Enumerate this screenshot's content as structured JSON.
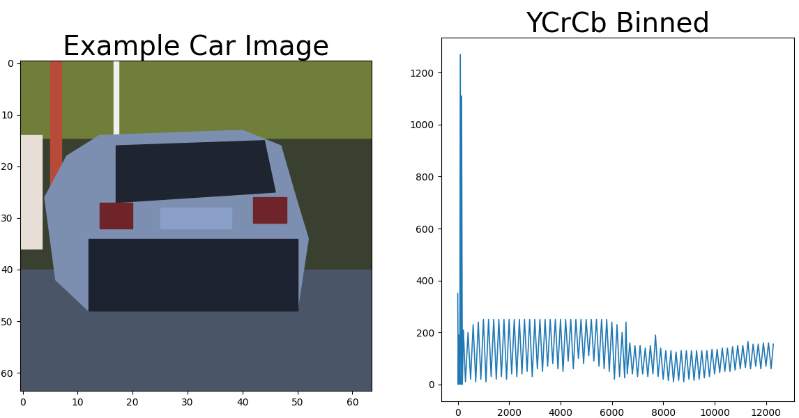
{
  "chart_data": [
    {
      "type": "image",
      "title": "Example Car Image",
      "xlim": [
        -0.5,
        63.5
      ],
      "ylim": [
        63.5,
        -0.5
      ],
      "xticks": [
        0,
        10,
        20,
        30,
        40,
        50,
        60
      ],
      "yticks": [
        0,
        10,
        20,
        30,
        40,
        50,
        60
      ]
    },
    {
      "type": "line",
      "title": "YCrCb Binned",
      "color": "#1f77b4",
      "xlim": [
        -650,
        13100
      ],
      "ylim": [
        -65,
        1335
      ],
      "xticks": [
        0,
        2000,
        4000,
        6000,
        8000,
        10000,
        12000
      ],
      "yticks": [
        0,
        200,
        400,
        600,
        800,
        1000,
        1200
      ],
      "x": [
        0,
        20,
        40,
        80,
        100,
        130,
        150,
        180,
        220,
        300,
        400,
        500,
        600,
        700,
        800,
        900,
        1000,
        1100,
        1200,
        1300,
        1400,
        1500,
        1600,
        1700,
        1800,
        1900,
        2000,
        2100,
        2200,
        2300,
        2400,
        2500,
        2600,
        2700,
        2800,
        2900,
        3000,
        3100,
        3200,
        3300,
        3400,
        3500,
        3600,
        3700,
        3800,
        3900,
        4000,
        4100,
        4200,
        4300,
        4400,
        4500,
        4600,
        4700,
        4800,
        4900,
        5000,
        5100,
        5200,
        5300,
        5400,
        5500,
        5600,
        5700,
        5800,
        5900,
        6000,
        6100,
        6200,
        6300,
        6400,
        6500,
        6550,
        6600,
        6700,
        6800,
        6900,
        7000,
        7100,
        7200,
        7300,
        7400,
        7500,
        7600,
        7700,
        7800,
        7900,
        8000,
        8100,
        8200,
        8300,
        8400,
        8500,
        8600,
        8700,
        8800,
        8900,
        9000,
        9100,
        9200,
        9300,
        9400,
        9500,
        9600,
        9700,
        9800,
        9900,
        10000,
        10100,
        10200,
        10300,
        10400,
        10500,
        10600,
        10700,
        10800,
        10900,
        11000,
        11100,
        11200,
        11300,
        11400,
        11500,
        11600,
        11700,
        11800,
        11900,
        12000,
        12100,
        12200,
        12288
      ],
      "values": [
        350,
        0,
        190,
        0,
        1270,
        0,
        1110,
        0,
        210,
        10,
        200,
        20,
        230,
        10,
        240,
        20,
        250,
        10,
        250,
        30,
        250,
        20,
        250,
        30,
        250,
        20,
        250,
        40,
        250,
        30,
        250,
        40,
        250,
        50,
        250,
        30,
        250,
        60,
        250,
        50,
        250,
        70,
        250,
        80,
        250,
        60,
        250,
        50,
        250,
        90,
        250,
        60,
        250,
        100,
        250,
        80,
        250,
        110,
        250,
        90,
        250,
        70,
        250,
        60,
        250,
        50,
        240,
        20,
        230,
        30,
        200,
        25,
        240,
        40,
        160,
        40,
        150,
        30,
        150,
        40,
        140,
        30,
        150,
        40,
        190,
        30,
        140,
        20,
        130,
        15,
        130,
        10,
        125,
        15,
        130,
        10,
        130,
        20,
        130,
        15,
        130,
        20,
        130,
        25,
        130,
        30,
        135,
        40,
        135,
        45,
        140,
        50,
        140,
        50,
        145,
        55,
        150,
        60,
        150,
        65,
        165,
        60,
        155,
        70,
        155,
        60,
        160,
        70,
        160,
        60,
        155
      ]
    }
  ]
}
